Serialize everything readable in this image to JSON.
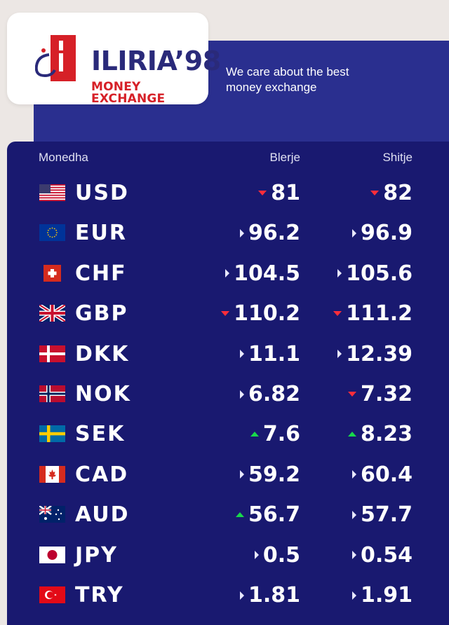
{
  "brand": {
    "name": "ILIRIA’98",
    "subtitle": "MONEY EXCHANGE"
  },
  "tagline": "We care about the best money exchange",
  "table": {
    "headers": {
      "currency": "Monedha",
      "buy": "Blerje",
      "sell": "Shitje"
    },
    "rows": [
      {
        "code": "USD",
        "flag": "us-flag",
        "buy": "81",
        "buy_trend": "down",
        "sell": "82",
        "sell_trend": "down"
      },
      {
        "code": "EUR",
        "flag": "eu-flag",
        "buy": "96.2",
        "buy_trend": "same",
        "sell": "96.9",
        "sell_trend": "same"
      },
      {
        "code": "CHF",
        "flag": "ch-flag",
        "buy": "104.5",
        "buy_trend": "same",
        "sell": "105.6",
        "sell_trend": "same"
      },
      {
        "code": "GBP",
        "flag": "gb-flag",
        "buy": "110.2",
        "buy_trend": "down",
        "sell": "111.2",
        "sell_trend": "down"
      },
      {
        "code": "DKK",
        "flag": "dk-flag",
        "buy": "11.1",
        "buy_trend": "same",
        "sell": "12.39",
        "sell_trend": "same"
      },
      {
        "code": "NOK",
        "flag": "no-flag",
        "buy": "6.82",
        "buy_trend": "same",
        "sell": "7.32",
        "sell_trend": "down"
      },
      {
        "code": "SEK",
        "flag": "se-flag",
        "buy": "7.6",
        "buy_trend": "up",
        "sell": "8.23",
        "sell_trend": "up"
      },
      {
        "code": "CAD",
        "flag": "ca-flag",
        "buy": "59.2",
        "buy_trend": "same",
        "sell": "60.4",
        "sell_trend": "same"
      },
      {
        "code": "AUD",
        "flag": "au-flag",
        "buy": "56.7",
        "buy_trend": "up",
        "sell": "57.7",
        "sell_trend": "same"
      },
      {
        "code": "JPY",
        "flag": "jp-flag",
        "buy": "0.5",
        "buy_trend": "same",
        "sell": "0.54",
        "sell_trend": "same"
      },
      {
        "code": "TRY",
        "flag": "tr-flag",
        "buy": "1.81",
        "buy_trend": "same",
        "sell": "1.91",
        "sell_trend": "same"
      }
    ]
  },
  "colors": {
    "navy": "#191970",
    "hero": "#2a2f8f",
    "brand_red": "#d62027",
    "trend_down": "#ff2d3a",
    "trend_up": "#18d84b"
  }
}
